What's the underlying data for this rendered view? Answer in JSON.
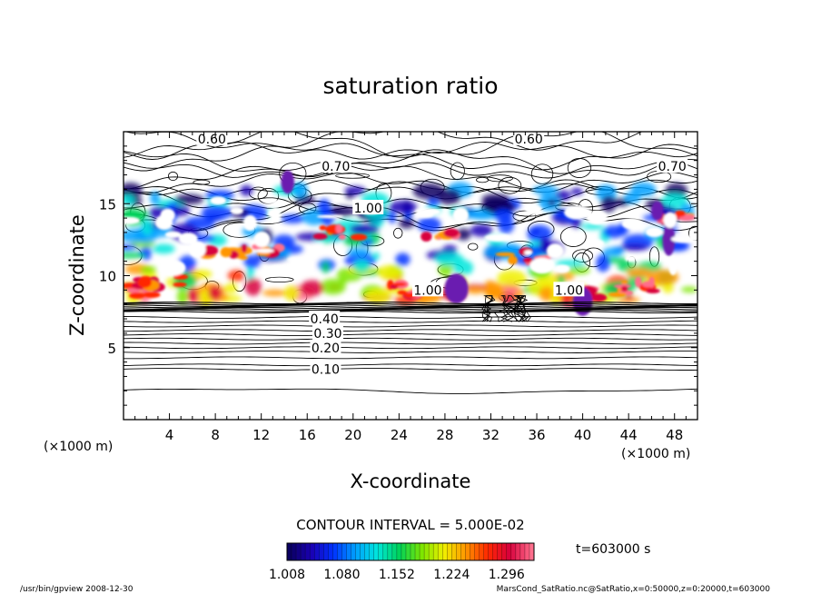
{
  "chart_data": {
    "type": "heatmap",
    "title": "saturation ratio",
    "xlabel": "X-coordinate",
    "ylabel": "Z-coordinate",
    "x_unit": "(×1000 m)",
    "x_unit_right": "(×1000 m)",
    "x_ticks": [
      4,
      8,
      12,
      16,
      20,
      24,
      28,
      32,
      36,
      40,
      44,
      48
    ],
    "y_ticks": [
      5,
      10,
      15
    ],
    "xlim": [
      0,
      50
    ],
    "ylim": [
      0,
      20
    ],
    "contour_interval_text": "CONTOUR INTERVAL = 5.000E-02",
    "time_label": "t=603000 s",
    "colorbar": {
      "ticks": [
        "1.008",
        "1.080",
        "1.152",
        "1.224",
        "1.296"
      ],
      "range": [
        1.008,
        1.332
      ],
      "colors": [
        "#0a0060",
        "#1a00b4",
        "#0032ff",
        "#00a0ff",
        "#00e6dc",
        "#00d25a",
        "#7ce600",
        "#f0f000",
        "#ff9600",
        "#ff2800",
        "#d8003c",
        "#ff6e8c"
      ]
    },
    "contour_labels": [
      {
        "text": "0.60",
        "x": 7.7,
        "z": 19.5
      },
      {
        "text": "0.60",
        "x": 35.3,
        "z": 19.5
      },
      {
        "text": "0.70",
        "x": 18.5,
        "z": 17.6
      },
      {
        "text": "0.70",
        "x": 47.8,
        "z": 17.6
      },
      {
        "text": "1.00",
        "x": 21.3,
        "z": 14.7
      },
      {
        "text": "1.00",
        "x": 26.5,
        "z": 9.0
      },
      {
        "text": "1.00",
        "x": 38.8,
        "z": 9.0
      },
      {
        "text": "0.40",
        "x": 17.5,
        "z": 7.0
      },
      {
        "text": "0.30",
        "x": 17.8,
        "z": 6.0
      },
      {
        "text": "0.20",
        "x": 17.6,
        "z": 5.0
      },
      {
        "text": "0.10",
        "x": 17.6,
        "z": 3.5
      }
    ],
    "footer_left": "/usr/bin/gpview   2008-12-30",
    "footer_right": "MarsCond_SatRatio.nc@SatRatio,x=0:50000,z=0:20000,t=603000"
  }
}
